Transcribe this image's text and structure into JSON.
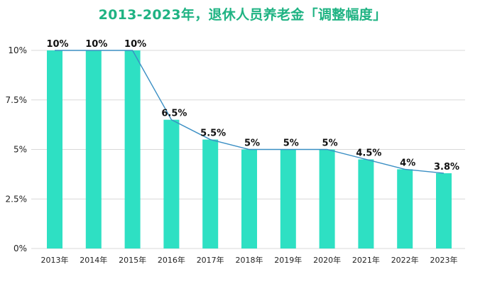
{
  "chart_data": {
    "type": "bar",
    "title": "2013-2023年，退休人员养老金「调整幅度」",
    "categories": [
      "2013年",
      "2014年",
      "2015年",
      "2016年",
      "2017年",
      "2018年",
      "2019年",
      "2020年",
      "2021年",
      "2022年",
      "2023年"
    ],
    "values": [
      10,
      10,
      10,
      6.5,
      5.5,
      5,
      5,
      5,
      4.5,
      4,
      3.8
    ],
    "data_labels": [
      "10%",
      "10%",
      "10%",
      "6.5%",
      "5.5%",
      "5%",
      "5%",
      "5%",
      "4.5%",
      "4%",
      "3.8%"
    ],
    "overlay_line": true,
    "ylim": [
      0,
      10
    ],
    "yticks": [
      0,
      2.5,
      5,
      7.5,
      10
    ],
    "ytick_labels": [
      "0%",
      "2.5%",
      "5%",
      "7.5%",
      "10%"
    ],
    "xlabel": "",
    "ylabel": "",
    "grid": true,
    "colors": {
      "bar": "#2ee0c3",
      "line": "#3b8fc4",
      "title": "#1fb383"
    }
  }
}
